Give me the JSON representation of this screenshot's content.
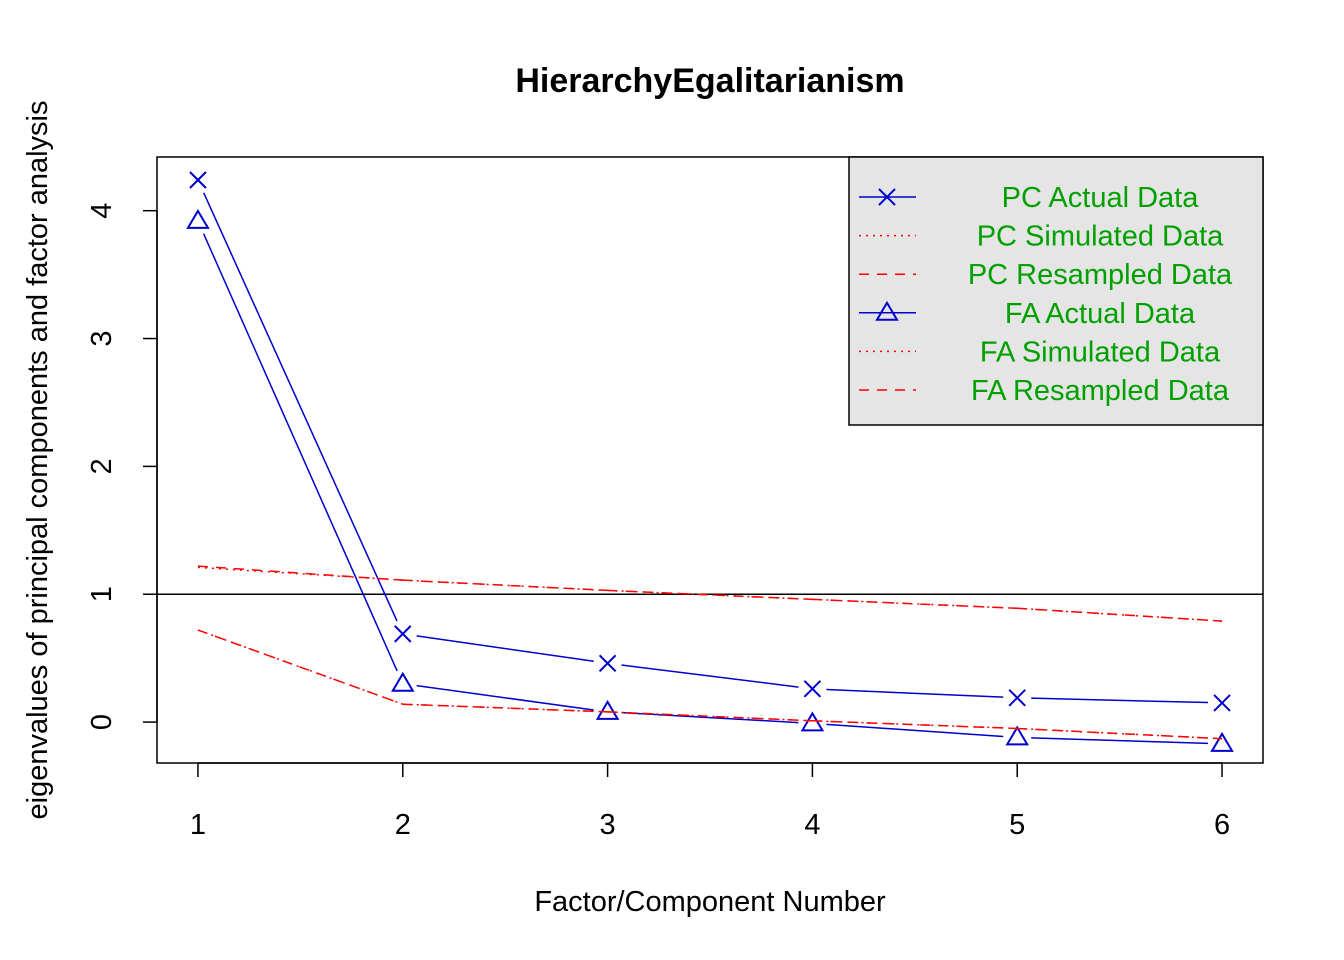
{
  "chart_data": {
    "type": "line",
    "title": "HierarchyEgalitarianism",
    "xlabel": "Factor/Component Number",
    "ylabel": "eigenvalues of principal components and factor analysis",
    "x": [
      1,
      2,
      3,
      4,
      5,
      6
    ],
    "xlim": [
      0.8,
      6.2
    ],
    "ylim": [
      -0.32,
      4.42
    ],
    "xticks": [
      1,
      2,
      3,
      4,
      5,
      6
    ],
    "yticks": [
      0,
      1,
      2,
      3,
      4
    ],
    "reference_line": 1,
    "grid": false,
    "legend_placement": "top-right",
    "series": [
      {
        "name": "PC  Actual Data",
        "values": [
          4.24,
          0.69,
          0.46,
          0.26,
          0.19,
          0.15
        ],
        "color": "#0000cd",
        "line": "solid",
        "marker": "x"
      },
      {
        "name": "PC  Simulated Data",
        "values": [
          1.21,
          1.11,
          1.03,
          0.96,
          0.89,
          0.79
        ],
        "color": "#ff0000",
        "line": "dotted",
        "marker": "none"
      },
      {
        "name": "PC  Resampled Data",
        "values": [
          1.22,
          1.11,
          1.03,
          0.96,
          0.89,
          0.79
        ],
        "color": "#ff0000",
        "line": "dashed",
        "marker": "none"
      },
      {
        "name": "FA  Actual Data",
        "values": [
          3.92,
          0.3,
          0.08,
          -0.01,
          -0.12,
          -0.17
        ],
        "color": "#0000cd",
        "line": "solid",
        "marker": "triangle"
      },
      {
        "name": "FA  Simulated Data",
        "values": [
          0.72,
          0.14,
          0.08,
          0.01,
          -0.05,
          -0.13
        ],
        "color": "#ff0000",
        "line": "dotted",
        "marker": "none"
      },
      {
        "name": "FA  Resampled Data",
        "values": [
          0.72,
          0.14,
          0.08,
          0.01,
          -0.05,
          -0.13
        ],
        "color": "#ff0000",
        "line": "dashed",
        "marker": "none"
      }
    ],
    "legend_text_color": "#00a000",
    "legend_bg_color": "#e5e5e5"
  }
}
